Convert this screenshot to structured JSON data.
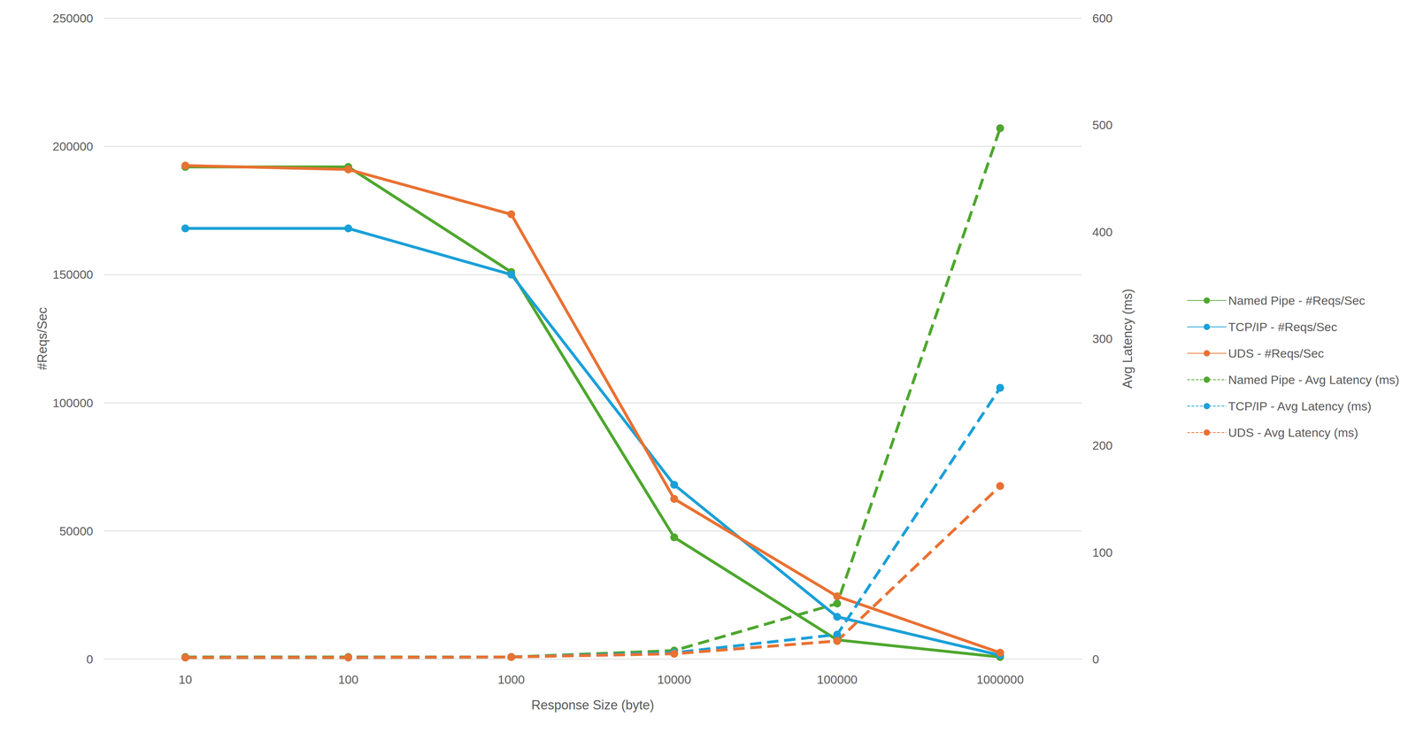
{
  "chart_data": {
    "type": "line",
    "x_label": "Response Size (byte)",
    "y_label": "#Reqs/Sec",
    "y2_label": "Avg Latency (ms)",
    "categories": [
      "10",
      "100",
      "1000",
      "10000",
      "100000",
      "1000000"
    ],
    "ylim": [
      0,
      250000
    ],
    "yticks": [
      0,
      50000,
      100000,
      150000,
      200000,
      250000
    ],
    "y2lim": [
      0,
      600
    ],
    "y2ticks": [
      0,
      100,
      200,
      300,
      400,
      500,
      600
    ],
    "grid": true,
    "legend": "right",
    "series": [
      {
        "name": "Named Pipe - #Reqs/Sec",
        "color": "#4ea72e",
        "marker": "circle",
        "line_style": "solid",
        "values": [
          192000,
          192000,
          151000,
          47500,
          7500,
          800
        ]
      },
      {
        "name": "TCP/IP - #Reqs/Sec",
        "color": "#1aa0d8",
        "marker": "circle",
        "line_style": "solid",
        "values": [
          168000,
          168000,
          150000,
          68000,
          16500,
          1500
        ]
      },
      {
        "name": "UDS - #Reqs/Sec",
        "color": "#e97132",
        "marker": "circle",
        "line_style": "solid",
        "values": [
          192500,
          191000,
          173500,
          62500,
          24500,
          2500
        ]
      },
      {
        "name": "Named Pipe - Avg Latency (ms)",
        "color": "#4ea72e",
        "marker": "circle",
        "line_style": "dashed",
        "axis": "y2",
        "values": [
          2,
          2,
          2,
          8,
          52,
          497
        ]
      },
      {
        "name": "TCP/IP - Avg Latency (ms)",
        "color": "#1aa0d8",
        "marker": "circle",
        "line_style": "dashed",
        "axis": "y2",
        "values": [
          1.5,
          1.5,
          2,
          6,
          23,
          254
        ]
      },
      {
        "name": "UDS - Avg Latency (ms)",
        "color": "#e97132",
        "marker": "circle",
        "line_style": "dashed",
        "axis": "y2",
        "values": [
          1.5,
          1.5,
          2,
          5,
          17,
          162
        ]
      }
    ]
  }
}
